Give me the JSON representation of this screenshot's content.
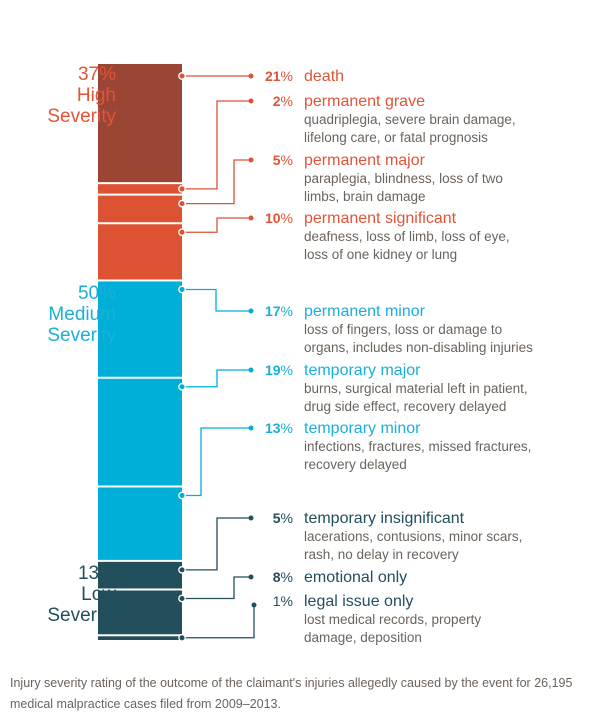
{
  "colors": {
    "high_dark": "#9b4535",
    "high": "#dc5233",
    "high_text": "#e05438",
    "medium": "#00afd8",
    "medium_text": "#1aafd8",
    "low": "#234e5c",
    "low_text": "#234e5c",
    "desc_text": "#6b635d"
  },
  "chart_data": {
    "type": "bar",
    "subtype": "stacked-100",
    "title": "",
    "caption": "Injury severity rating of the outcome of the claimant's injuries allegedly caused by the event for 26,195 medical malpractice cases filed from 2009–2013.",
    "unit": "%",
    "groups": [
      {
        "id": "high",
        "percent": "37%",
        "line1": "High",
        "line2": "Severity",
        "value": 37
      },
      {
        "id": "medium",
        "percent": "50%",
        "line1": "Medium",
        "line2": "Severity",
        "value": 50
      },
      {
        "id": "low",
        "percent": "13%",
        "line1": "Low",
        "line2": "Severity",
        "value": 13
      }
    ],
    "categories": [
      {
        "group": "high",
        "value": 21,
        "num": "21",
        "sign": "%",
        "label": "death",
        "desc": []
      },
      {
        "group": "high",
        "value": 2,
        "num": "2",
        "sign": "%",
        "label": "permanent grave",
        "desc": [
          "quadriplegia, severe brain damage,",
          "lifelong care, or fatal prognosis"
        ]
      },
      {
        "group": "high",
        "value": 5,
        "num": "5",
        "sign": "%",
        "label": "permanent major",
        "desc": [
          "paraplegia, blindness, loss of two",
          "limbs, brain damage"
        ]
      },
      {
        "group": "high",
        "value": 10,
        "num": "10",
        "sign": "%",
        "label": "permanent significant",
        "desc": [
          "deafness, loss of limb, loss of eye,",
          "loss of one kidney or lung"
        ]
      },
      {
        "group": "medium",
        "value": 17,
        "num": "17",
        "sign": "%",
        "label": "permanent minor",
        "desc": [
          "loss of fingers, loss or damage to",
          "organs, includes non-disabling injuries"
        ]
      },
      {
        "group": "medium",
        "value": 19,
        "num": "19",
        "sign": "%",
        "label": "temporary major",
        "desc": [
          "burns, surgical material left in patient,",
          "drug side effect, recovery delayed"
        ]
      },
      {
        "group": "medium",
        "value": 13,
        "num": "13",
        "sign": "%",
        "label": "temporary minor",
        "desc": [
          "infections, fractures, missed fractures,",
          "recovery delayed"
        ]
      },
      {
        "group": "low",
        "value": 5,
        "num": "5",
        "sign": "%",
        "label": "temporary insignificant",
        "desc": [
          "lacerations, contusions, minor scars,",
          "rash, no delay in recovery"
        ]
      },
      {
        "group": "low",
        "value": 8,
        "num": "8",
        "sign": "%",
        "label": "emotional only",
        "desc": []
      },
      {
        "group": "low",
        "value": 1,
        "num": "1",
        "sign": "%",
        "label": "legal issue only",
        "desc": [
          "lost medical records, property",
          "damage, deposition"
        ]
      }
    ]
  }
}
